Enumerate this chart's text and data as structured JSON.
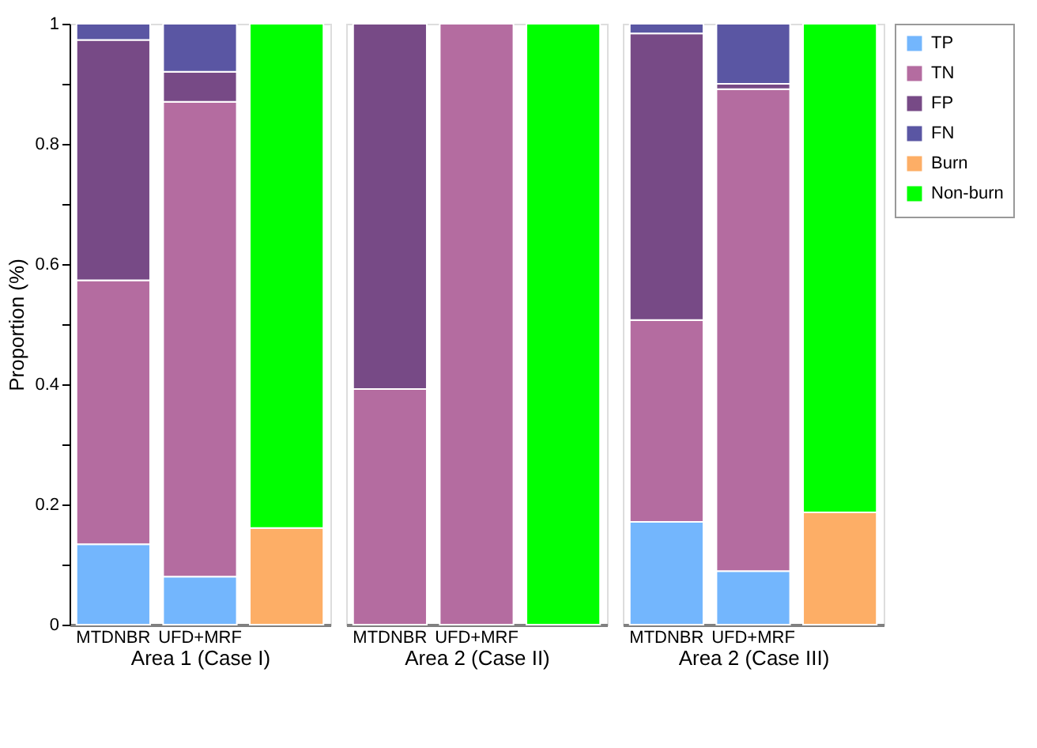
{
  "chart_data": [
    {
      "type": "bar",
      "stacked": true,
      "xlabel": "Area 1 (Case I)",
      "ylabel": "Proportion (%)",
      "categories": [
        "MTDNBR",
        "UFD+MRF",
        null
      ],
      "ylim": [
        0,
        1
      ],
      "yticks": [
        0,
        {
          "value": 0.1,
          "label": null
        },
        0.2,
        {
          "value": 0.3,
          "label": null
        },
        0.4,
        {
          "value": 0.5,
          "label": null
        },
        0.6,
        {
          "value": 0.7,
          "label": null
        },
        0.8,
        {
          "value": 0.9,
          "label": null
        },
        1
      ],
      "grid": false,
      "legend": "right",
      "series": [
        {
          "name": "TP",
          "color": "#73b6fd",
          "values": [
            0.134,
            0.08,
            null
          ]
        },
        {
          "name": "TN",
          "color": "#b46ca0",
          "values": [
            0.439,
            0.79,
            null
          ]
        },
        {
          "name": "FP",
          "color": "#774a86",
          "values": [
            0.4,
            0.05,
            null
          ]
        },
        {
          "name": "FN",
          "color": "#5a56a3",
          "values": [
            0.027,
            0.08,
            null
          ]
        },
        {
          "name": "Burn",
          "color": "#fdae66",
          "values": [
            null,
            null,
            0.161
          ]
        },
        {
          "name": "Non-burn",
          "color": "#00ff00",
          "values": [
            null,
            null,
            0.839
          ]
        }
      ]
    },
    {
      "type": "bar",
      "stacked": true,
      "xlabel": "Area 2 (Case II)",
      "categories": [
        "MTDNBR",
        "UFD+MRF",
        null
      ],
      "ylim": [
        0,
        1
      ],
      "tick_labels": "x",
      "grid": false,
      "series": [
        {
          "color": "#73b6fd",
          "values": [
            null,
            null,
            null
          ]
        },
        {
          "color": "#b46ca0",
          "values": [
            0.392,
            1,
            null
          ]
        },
        {
          "color": "#774a86",
          "values": [
            0.608,
            null,
            null
          ]
        },
        {
          "color": "#5a56a3",
          "values": [
            null,
            null,
            null
          ]
        },
        {
          "color": "#fdae66",
          "values": [
            null,
            null,
            null
          ]
        },
        {
          "color": "#00ff00",
          "values": [
            null,
            null,
            1
          ]
        }
      ]
    },
    {
      "type": "bar",
      "stacked": true,
      "xlabel": "Area 2 (Case III)",
      "categories": [
        "MTDNBR",
        "UFD+MRF",
        null
      ],
      "ylim": [
        0,
        1
      ],
      "tick_labels": "x",
      "grid": false,
      "series": [
        {
          "color": "#73b6fd",
          "values": [
            0.171,
            0.089,
            null
          ]
        },
        {
          "color": "#b46ca0",
          "values": [
            0.336,
            0.802,
            null
          ]
        },
        {
          "color": "#774a86",
          "values": [
            0.477,
            0.009,
            null
          ]
        },
        {
          "color": "#5a56a3",
          "values": [
            0.016,
            0.1,
            null
          ]
        },
        {
          "color": "#fdae66",
          "values": [
            null,
            null,
            0.187
          ]
        },
        {
          "color": "#00ff00",
          "values": [
            null,
            null,
            0.813
          ]
        }
      ]
    }
  ]
}
